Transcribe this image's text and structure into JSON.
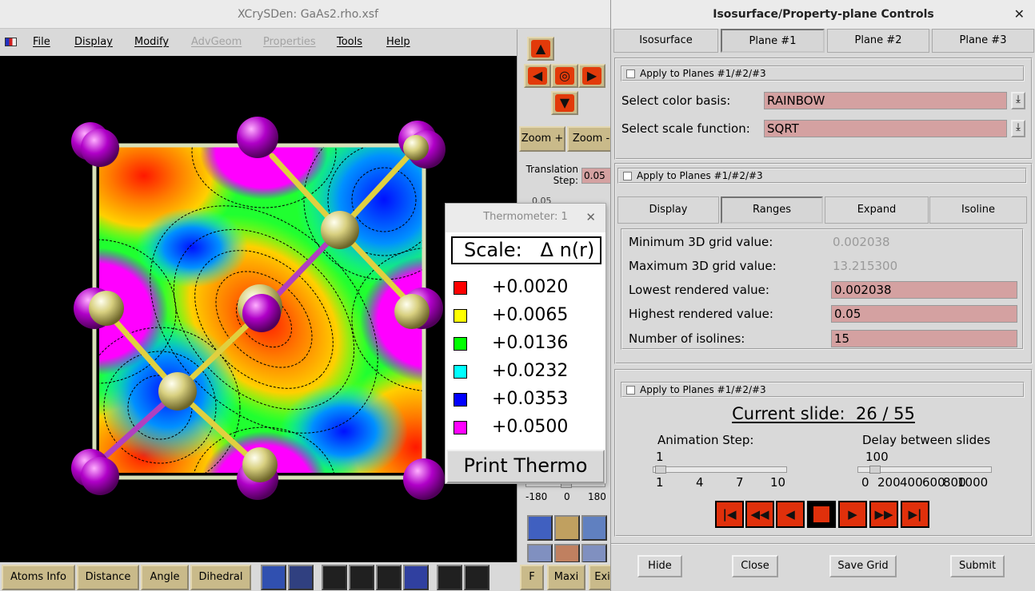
{
  "main_window": {
    "title": "XCrySDen: GaAs2.rho.xsf",
    "menu": [
      "File",
      "Display",
      "Modify",
      "AdvGeom",
      "Properties",
      "Tools",
      "Help"
    ],
    "menu_disabled": [
      "AdvGeom",
      "Properties"
    ]
  },
  "side_panel": {
    "zoom_in": "Zoom +",
    "zoom_out": "Zoom -",
    "translation_label_1": "Translation",
    "translation_label_2": "Step:",
    "translation_step": "0.05",
    "partial_value": "0.05",
    "rotate_min": "-180",
    "rotate_mid": "0",
    "rotate_max": "180"
  },
  "bottom_toolbar": {
    "buttons": [
      "Atoms Info",
      "Distance",
      "Angle",
      "Dihedral"
    ],
    "right_buttons": [
      "F",
      "Maxi",
      "Exi"
    ]
  },
  "thermometer": {
    "title": "Thermometer: 1",
    "scale_label": "Scale:   Δ n(r)",
    "entries": [
      {
        "value": "+0.0020",
        "color": "#ff0000"
      },
      {
        "value": "+0.0065",
        "color": "#ffff00"
      },
      {
        "value": "+0.0136",
        "color": "#00ff00"
      },
      {
        "value": "+0.0232",
        "color": "#00ffff"
      },
      {
        "value": "+0.0353",
        "color": "#0000ff"
      },
      {
        "value": "+0.0500",
        "color": "#ff00ff"
      }
    ],
    "print_button": "Print Thermo"
  },
  "controls": {
    "title": "Isosurface/Property-plane Controls",
    "tabs": [
      "Isosurface",
      "Plane #1",
      "Plane #2",
      "Plane #3"
    ],
    "active_tab": "Plane #1",
    "apply_label": "Apply to Planes #1/#2/#3",
    "color_basis_label": "Select color basis:",
    "color_basis": "RAINBOW",
    "scale_function_label": "Select scale function:",
    "scale_function": "SQRT",
    "subtabs": [
      "Display",
      "Ranges",
      "Expand",
      "Isoline"
    ],
    "active_subtab": "Ranges",
    "ranges": {
      "min_label": "Minimum 3D grid value:",
      "min_value": "0.002038",
      "max_label": "Maximum 3D grid value:",
      "max_value": "13.215300",
      "lowest_label": "Lowest rendered value:",
      "lowest_value": "0.002038",
      "highest_label": "Highest rendered value:",
      "highest_value": "0.05",
      "isolines_label": "Number of isolines:",
      "isolines_value": "15"
    },
    "slide": {
      "current_label": "Current slide:  26 / 55",
      "anim_step_label": "Animation Step:",
      "anim_step_value": "1",
      "anim_ticks": [
        "1",
        "4",
        "7",
        "10"
      ],
      "delay_label": "Delay between slides",
      "delay_value": "100",
      "delay_ticks": [
        "0",
        "200",
        "400",
        "600",
        "800",
        "1000"
      ]
    },
    "buttons": [
      "Hide",
      "Close",
      "Save Grid",
      "Submit"
    ]
  }
}
